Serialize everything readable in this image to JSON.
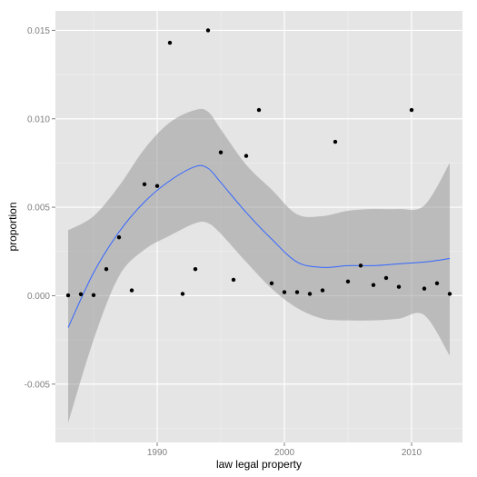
{
  "chart_data": {
    "type": "scatter",
    "title": "",
    "xlabel": "law legal property",
    "ylabel": "proportion",
    "xlim": [
      1982,
      2014
    ],
    "ylim": [
      -0.0083,
      0.0161
    ],
    "grid": true,
    "x_ticks": [
      1990,
      2000,
      2010
    ],
    "x_tick_labels": [
      "1990",
      "2000",
      "2010"
    ],
    "y_ticks": [
      -0.005,
      0.0,
      0.005,
      0.01,
      0.015
    ],
    "y_tick_labels": [
      "-0.005",
      "0.000",
      "0.005",
      "0.010",
      "0.015"
    ],
    "colors": {
      "panel": "#e5e5e5",
      "grid_major": "#ffffff",
      "grid_minor": "#f2f2f2",
      "points": "#000000",
      "smooth_line": "#3366ff",
      "ribbon": "#999999"
    },
    "series": [
      {
        "kind": "points",
        "x": [
          1983,
          1984,
          1985,
          1986,
          1987,
          1988,
          1989,
          1990,
          1991,
          1992,
          1993,
          1994,
          1995,
          1996,
          1997,
          1998,
          1999,
          2000,
          2001,
          2002,
          2003,
          2004,
          2005,
          2006,
          2007,
          2008,
          2009,
          2010,
          2011,
          2012,
          2013
        ],
        "y": [
          2e-05,
          8e-05,
          3e-05,
          0.0015,
          0.0033,
          0.0003,
          0.0063,
          0.0062,
          0.0143,
          0.0001,
          0.0015,
          0.015,
          0.0081,
          0.0009,
          0.0079,
          0.0105,
          0.0007,
          0.0002,
          0.0002,
          0.0001,
          0.0003,
          0.0087,
          0.0008,
          0.0017,
          0.0006,
          0.001,
          0.0005,
          0.0105,
          0.0004,
          0.0007,
          0.0001
        ]
      },
      {
        "kind": "smooth",
        "x": [
          1983,
          1985,
          1987,
          1989,
          1991,
          1993,
          1994,
          1995,
          1997,
          1999,
          2001,
          2003,
          2005,
          2007,
          2009,
          2011,
          2013
        ],
        "y": [
          -0.0018,
          0.0013,
          0.0036,
          0.0053,
          0.0065,
          0.0073,
          0.0072,
          0.0064,
          0.0047,
          0.0032,
          0.0019,
          0.0016,
          0.0017,
          0.0017,
          0.0018,
          0.0019,
          0.0021
        ],
        "lower": [
          -0.0072,
          -0.0025,
          0.0011,
          0.0026,
          0.0034,
          0.0041,
          0.0041,
          0.0035,
          0.0019,
          0.0004,
          -0.0007,
          -0.0013,
          -0.0014,
          -0.0014,
          -0.0013,
          -0.0011,
          -0.0034
        ],
        "upper": [
          0.0037,
          0.0045,
          0.0062,
          0.0083,
          0.0098,
          0.0105,
          0.0104,
          0.0094,
          0.0074,
          0.006,
          0.0046,
          0.0045,
          0.0048,
          0.0049,
          0.0049,
          0.0051,
          0.0075
        ]
      }
    ]
  }
}
